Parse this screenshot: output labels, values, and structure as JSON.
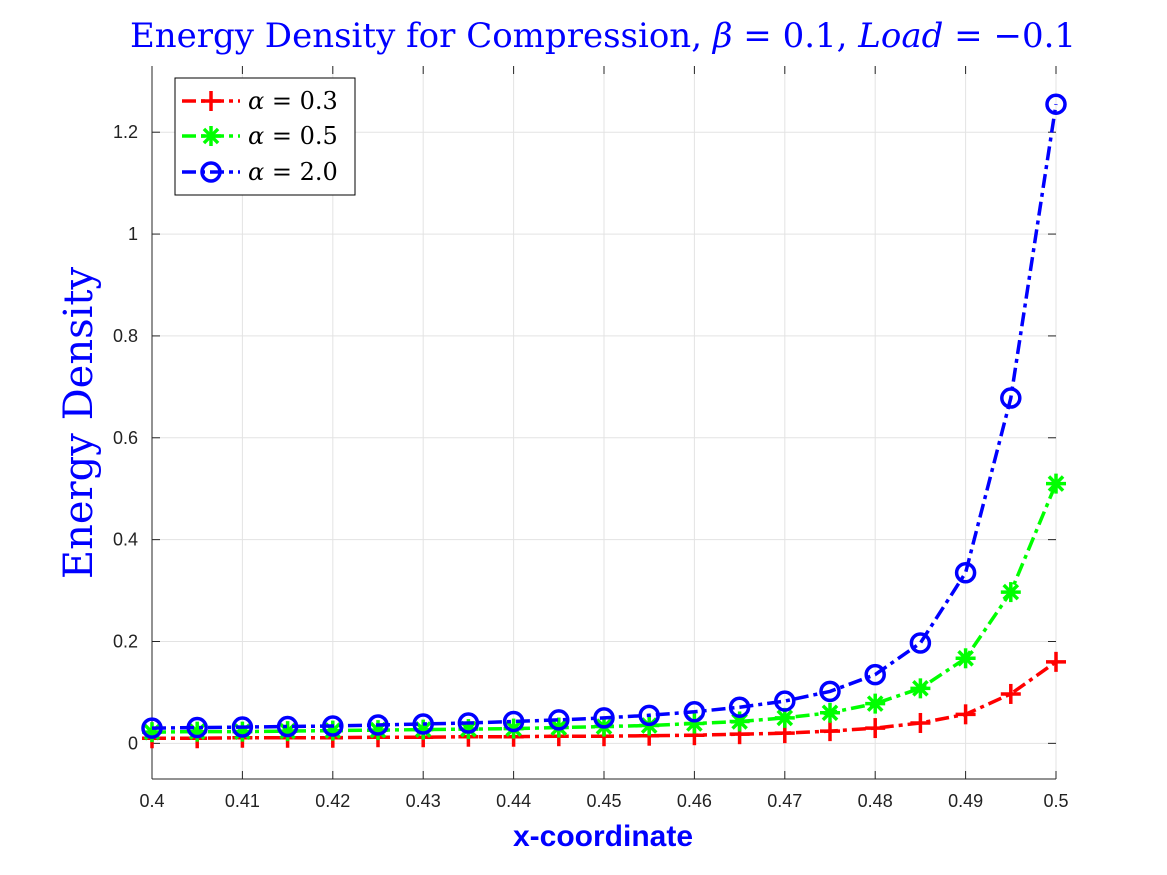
{
  "chart_data": {
    "type": "line",
    "title": "Energy Density for Compression, β = 0.1, Load = −0.1",
    "title_parts": {
      "prefix": "Energy Density for Compression, ",
      "beta_symbol": "β",
      "beta_value": " = 0.1, ",
      "load_symbol": "Load",
      "load_value": " = −0.1"
    },
    "xlabel": "x-coordinate",
    "ylabel": "Energy Density",
    "xlim": [
      0.4,
      0.5
    ],
    "ylim": [
      -0.07,
      1.33
    ],
    "x_ticks": [
      0.4,
      0.41,
      0.42,
      0.43,
      0.44,
      0.45,
      0.46,
      0.47,
      0.48,
      0.49,
      0.5
    ],
    "x_tick_labels": [
      "0.4",
      "0.41",
      "0.42",
      "0.43",
      "0.44",
      "0.45",
      "0.46",
      "0.47",
      "0.48",
      "0.49",
      "0.5"
    ],
    "y_ticks": [
      0,
      0.2,
      0.4,
      0.6,
      0.8,
      1,
      1.2
    ],
    "y_tick_labels": [
      "0",
      "0.2",
      "0.4",
      "0.6",
      "0.8",
      "1",
      "1.2"
    ],
    "grid": true,
    "legend_position": "top-left",
    "x": [
      0.4,
      0.405,
      0.41,
      0.415,
      0.42,
      0.425,
      0.43,
      0.435,
      0.44,
      0.445,
      0.45,
      0.455,
      0.46,
      0.465,
      0.47,
      0.475,
      0.48,
      0.485,
      0.49,
      0.495,
      0.5
    ],
    "series": [
      {
        "name": "α = 0.3",
        "legend_symbol": "α",
        "legend_value": " = 0.3",
        "color": "#ff0000",
        "marker": "plus",
        "values": [
          0.01,
          0.01,
          0.011,
          0.011,
          0.011,
          0.012,
          0.012,
          0.013,
          0.013,
          0.014,
          0.014,
          0.015,
          0.016,
          0.018,
          0.02,
          0.024,
          0.03,
          0.04,
          0.057,
          0.097,
          0.16
        ]
      },
      {
        "name": "α = 0.5",
        "legend_symbol": "α",
        "legend_value": " = 0.5",
        "color": "#00ff00",
        "marker": "asterisk",
        "values": [
          0.022,
          0.023,
          0.023,
          0.024,
          0.025,
          0.026,
          0.027,
          0.028,
          0.029,
          0.031,
          0.033,
          0.035,
          0.039,
          0.043,
          0.05,
          0.06,
          0.078,
          0.108,
          0.167,
          0.297,
          0.51
        ]
      },
      {
        "name": "α = 2.0",
        "legend_symbol": "α",
        "legend_value": " = 2.0",
        "color": "#0000ff",
        "marker": "circle",
        "values": [
          0.03,
          0.031,
          0.032,
          0.033,
          0.034,
          0.036,
          0.038,
          0.04,
          0.043,
          0.046,
          0.05,
          0.055,
          0.062,
          0.071,
          0.083,
          0.102,
          0.135,
          0.197,
          0.335,
          0.678,
          1.255
        ]
      }
    ]
  }
}
